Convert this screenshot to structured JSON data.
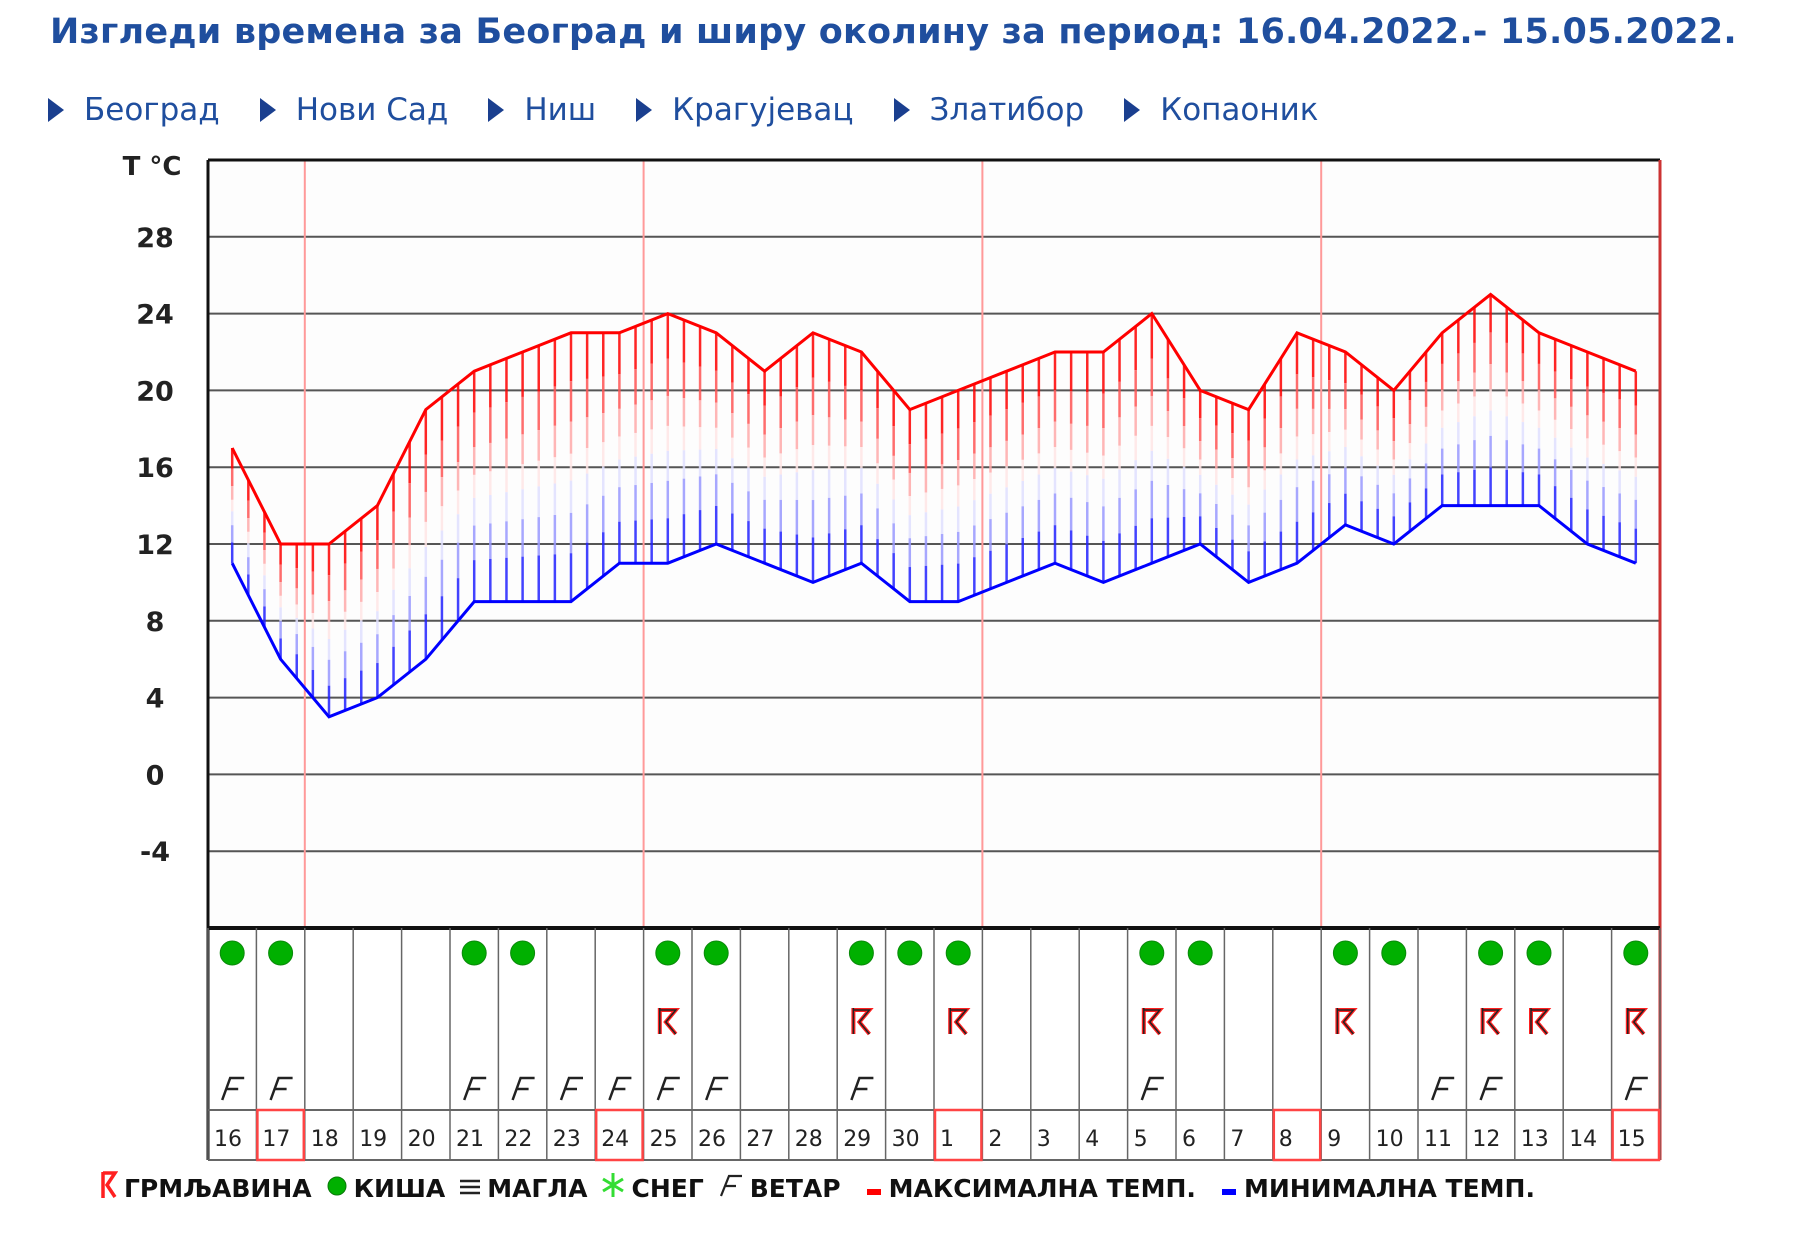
{
  "header": {
    "title": "Изгледи времена за Београд и ширу околину за период: 16.04.2022.- 15.05.2022."
  },
  "nav": {
    "items": [
      {
        "label": "Београд"
      },
      {
        "label": "Нови Сад"
      },
      {
        "label": "Ниш"
      },
      {
        "label": "Крагујевац"
      },
      {
        "label": "Златибор"
      },
      {
        "label": "Копаоник"
      }
    ]
  },
  "colors": {
    "title": "#1f4e9e",
    "max_line": "#ff0000",
    "min_line": "#0000ff",
    "rain": "#00b000",
    "snow": "#33dd33",
    "week_divider": "#ff9999",
    "highlight_box": "#ff4444"
  },
  "legend": {
    "items": [
      {
        "icon": "thunder-icon",
        "label": "ГРМЉАВИНА"
      },
      {
        "icon": "rain-icon",
        "label": "КИША"
      },
      {
        "icon": "fog-icon",
        "label": "МАГЛА"
      },
      {
        "icon": "snow-icon",
        "label": "СНЕГ"
      },
      {
        "icon": "wind-icon",
        "label": "ВЕТАР"
      },
      {
        "icon": "max-temp-icon",
        "label": "МАКСИМАЛНА ТЕМП."
      },
      {
        "icon": "min-temp-icon",
        "label": "МИНИМАЛНА ТЕМП."
      }
    ]
  },
  "chart_data": {
    "type": "line",
    "title": "Изгледи времена за Београд и ширу околину за период: 16.04.2022.- 15.05.2022.",
    "ylabel": "T °C",
    "xlabel": "",
    "yticks": [
      28,
      24,
      20,
      16,
      12,
      8,
      4,
      0,
      -4
    ],
    "ylim": [
      -8,
      32
    ],
    "grid": true,
    "categories": [
      "16",
      "17",
      "18",
      "19",
      "20",
      "21",
      "22",
      "23",
      "24",
      "25",
      "26",
      "27",
      "28",
      "29",
      "30",
      "1",
      "2",
      "3",
      "4",
      "5",
      "6",
      "7",
      "8",
      "9",
      "10",
      "11",
      "12",
      "13",
      "14",
      "15"
    ],
    "highlighted_days": [
      "17",
      "24",
      "1",
      "8",
      "15"
    ],
    "week_dividers_after": [
      "17",
      "24",
      "1",
      "8"
    ],
    "series": [
      {
        "name": "МАКСИМАЛНА ТЕМП.",
        "color": "#ff0000",
        "values": [
          17,
          12,
          12,
          14,
          19,
          21,
          22,
          23,
          23,
          24,
          23,
          21,
          23,
          22,
          19,
          20,
          21,
          22,
          22,
          24,
          20,
          19,
          23,
          22,
          20,
          23,
          25,
          23,
          22,
          21
        ]
      },
      {
        "name": "МИНИМАЛНА ТЕМП.",
        "color": "#0000ff",
        "values": [
          11,
          6,
          3,
          4,
          6,
          9,
          9,
          9,
          11,
          11,
          12,
          11,
          10,
          11,
          9,
          9,
          10,
          11,
          10,
          11,
          12,
          10,
          11,
          13,
          12,
          14,
          14,
          14,
          12,
          11
        ]
      }
    ],
    "weather": {
      "rain": [
        1,
        1,
        0,
        0,
        0,
        1,
        1,
        0,
        0,
        1,
        1,
        0,
        0,
        1,
        1,
        1,
        0,
        0,
        0,
        1,
        1,
        0,
        0,
        1,
        1,
        0,
        1,
        1,
        0,
        1
      ],
      "thunder": [
        0,
        0,
        0,
        0,
        0,
        0,
        0,
        0,
        0,
        1,
        0,
        0,
        0,
        1,
        0,
        1,
        0,
        0,
        0,
        1,
        0,
        0,
        0,
        1,
        0,
        0,
        1,
        1,
        0,
        1
      ],
      "wind": [
        1,
        1,
        0,
        0,
        0,
        1,
        1,
        1,
        1,
        1,
        1,
        0,
        0,
        1,
        0,
        0,
        0,
        0,
        0,
        1,
        0,
        0,
        0,
        0,
        0,
        1,
        1,
        0,
        0,
        1
      ]
    }
  }
}
